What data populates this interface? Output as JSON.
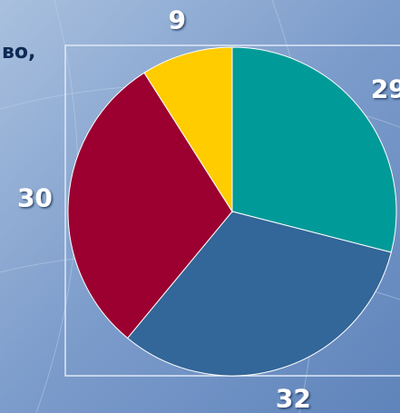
{
  "chart_data": {
    "type": "pie",
    "annotation": "во,",
    "categories": [
      null,
      null,
      null,
      null
    ],
    "values": [
      29,
      32,
      30,
      9
    ],
    "colors": [
      "#009a98",
      "#336699",
      "#9b0030",
      "#ffcc00"
    ]
  }
}
